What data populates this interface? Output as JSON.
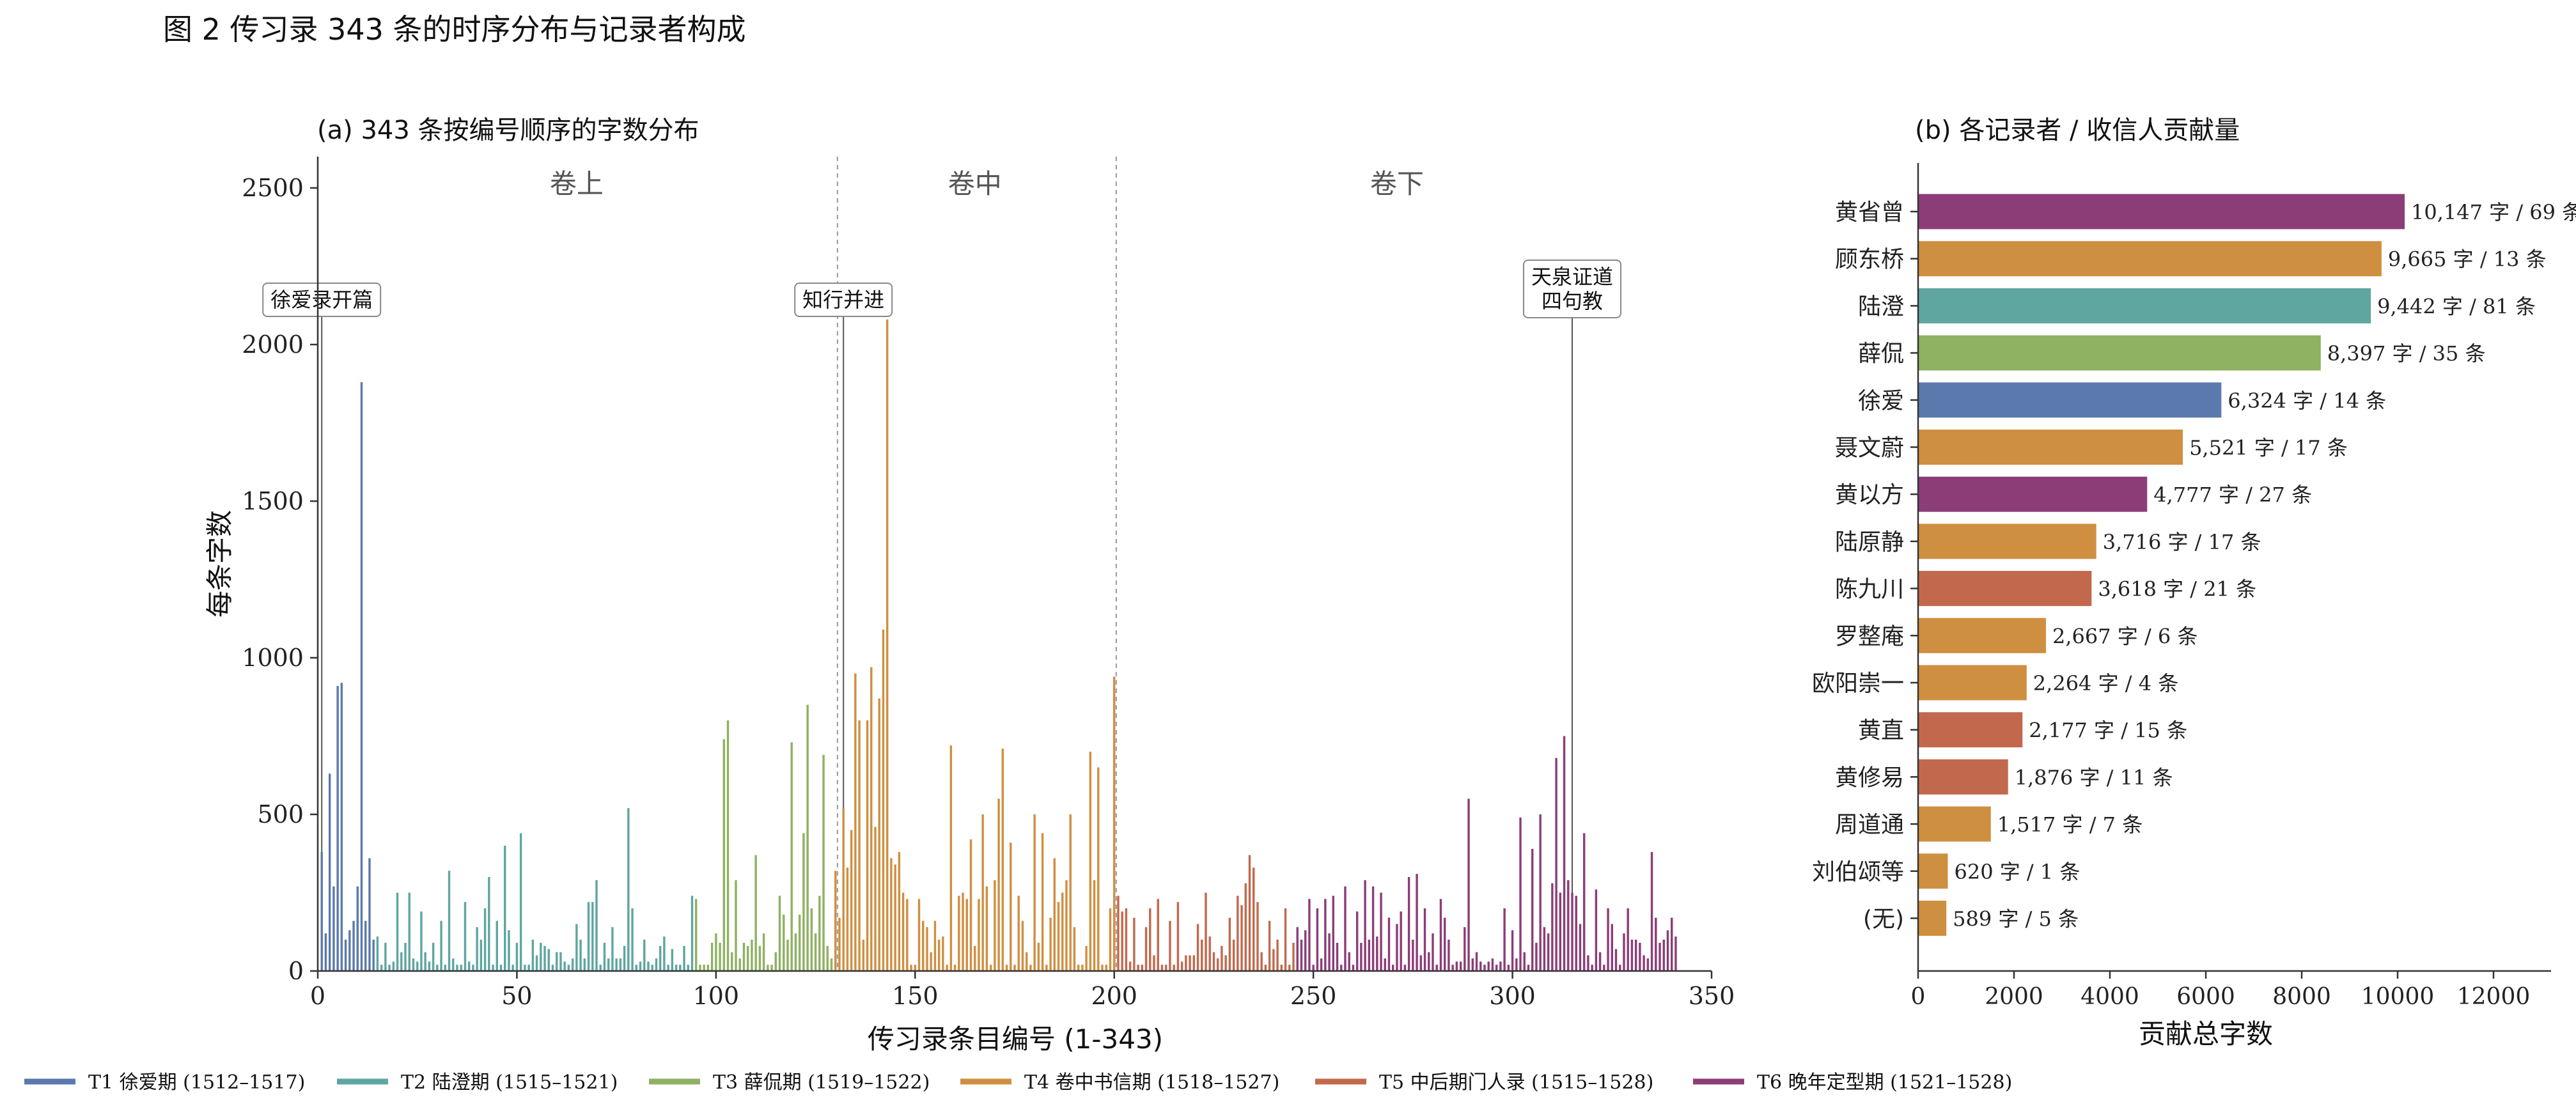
{
  "figure": {
    "title": "图 2  传习录 343 条的时序分布与记录者构成"
  },
  "colors": {
    "T1": "#5b79ad",
    "T2": "#5fa6a0",
    "T3": "#8fb162",
    "T4": "#cf8f41",
    "T5": "#c2694d",
    "T6": "#8c3d78",
    "axis": "#333333",
    "divider": "#999999"
  },
  "legend": [
    {
      "key": "T1",
      "label": "T1 徐爱期 (1512–1517)"
    },
    {
      "key": "T2",
      "label": "T2 陆澄期 (1515–1521)"
    },
    {
      "key": "T3",
      "label": "T3 薛侃期 (1519–1522)"
    },
    {
      "key": "T4",
      "label": "T4 卷中书信期 (1518–1527)"
    },
    {
      "key": "T5",
      "label": "T5 中后期门人录 (1515–1528)"
    },
    {
      "key": "T6",
      "label": "T6 晚年定型期 (1521–1528)"
    }
  ],
  "chart_data": [
    {
      "id": "a",
      "type": "bar",
      "title": "(a)  343 条按编号顺序的字数分布",
      "xlabel": "传习录条目编号 (1-343)",
      "ylabel": "每条字数",
      "xlim": [
        0,
        350
      ],
      "ylim": [
        0,
        2600
      ],
      "xticks": [
        0,
        50,
        100,
        150,
        200,
        250,
        300,
        350
      ],
      "yticks": [
        0,
        500,
        1000,
        1500,
        2000,
        2500
      ],
      "grid": false,
      "volume_dividers": [
        130.5,
        200.5
      ],
      "volume_labels": [
        {
          "label": "卷上",
          "x": 65
        },
        {
          "label": "卷中",
          "x": 165
        },
        {
          "label": "卷下",
          "x": 271
        }
      ],
      "annotations": [
        {
          "lines": [
            "徐爱录开篇"
          ],
          "x": 1
        },
        {
          "lines": [
            "知行并进"
          ],
          "x": 132
        },
        {
          "lines": [
            "天泉证道",
            "四句教"
          ],
          "x": 315
        }
      ],
      "period_segments": [
        {
          "key": "T1",
          "start": 1,
          "end": 14
        },
        {
          "key": "T2",
          "start": 15,
          "end": 94
        },
        {
          "key": "T3",
          "start": 95,
          "end": 129
        },
        {
          "key": "T4",
          "start": 130,
          "end": 200
        },
        {
          "key": "T5",
          "start": 201,
          "end": 245
        },
        {
          "key": "T6",
          "start": 246,
          "end": 343
        }
      ],
      "values": [
        380,
        120,
        630,
        270,
        910,
        920,
        100,
        130,
        160,
        270,
        1880,
        160,
        360,
        100,
        110,
        20,
        90,
        20,
        30,
        250,
        60,
        90,
        250,
        40,
        30,
        190,
        60,
        30,
        90,
        20,
        160,
        20,
        320,
        40,
        20,
        20,
        220,
        30,
        20,
        140,
        100,
        200,
        300,
        20,
        160,
        20,
        400,
        130,
        20,
        90,
        440,
        20,
        20,
        100,
        50,
        90,
        80,
        70,
        20,
        60,
        60,
        30,
        20,
        40,
        150,
        100,
        40,
        220,
        220,
        290,
        20,
        90,
        40,
        140,
        40,
        40,
        80,
        520,
        200,
        20,
        30,
        100,
        30,
        20,
        40,
        80,
        110,
        20,
        70,
        20,
        20,
        80,
        20,
        240,
        230,
        20,
        20,
        20,
        90,
        120,
        90,
        740,
        800,
        60,
        290,
        40,
        90,
        80,
        100,
        370,
        80,
        120,
        20,
        20,
        60,
        240,
        180,
        100,
        730,
        120,
        180,
        440,
        850,
        200,
        120,
        240,
        690,
        80,
        40,
        320,
        170,
        520,
        330,
        450,
        950,
        800,
        100,
        800,
        970,
        460,
        870,
        1090,
        2080,
        360,
        340,
        380,
        250,
        230,
        20,
        20,
        230,
        160,
        140,
        60,
        160,
        100,
        110,
        20,
        720,
        20,
        240,
        250,
        230,
        420,
        80,
        230,
        500,
        270,
        20,
        290,
        550,
        710,
        20,
        410,
        20,
        240,
        160,
        60,
        20,
        500,
        90,
        440,
        20,
        170,
        360,
        220,
        250,
        290,
        500,
        140,
        20,
        20,
        80,
        700,
        290,
        650,
        20,
        20,
        200,
        940,
        240,
        190,
        200,
        30,
        170,
        20,
        20,
        140,
        200,
        50,
        230,
        20,
        20,
        160,
        20,
        220,
        30,
        50,
        50,
        50,
        150,
        100,
        250,
        110,
        60,
        40,
        80,
        50,
        170,
        100,
        240,
        210,
        280,
        370,
        330,
        220,
        60,
        20,
        160,
        70,
        100,
        20,
        200,
        20,
        90,
        140,
        100,
        130,
        230,
        20,
        200,
        40,
        230,
        120,
        240,
        90,
        20,
        270,
        60,
        20,
        190,
        90,
        290,
        100,
        270,
        110,
        250,
        40,
        170,
        20,
        150,
        190,
        20,
        300,
        100,
        310,
        50,
        200,
        60,
        120,
        20,
        230,
        170,
        100,
        20,
        30,
        30,
        140,
        550,
        40,
        60,
        30,
        20,
        30,
        40,
        20,
        30,
        200,
        20,
        130,
        40,
        490,
        60,
        20,
        390,
        90,
        500,
        140,
        120,
        280,
        680,
        250,
        750,
        290,
        250,
        240,
        150,
        440,
        50,
        20,
        260,
        60,
        20,
        200,
        150,
        70,
        20,
        120,
        200,
        100,
        100,
        90,
        50,
        40,
        380,
        170,
        90,
        100,
        130,
        170,
        110
      ]
    },
    {
      "id": "b",
      "type": "bar",
      "orientation": "horizontal",
      "title": "(b)  各记录者 / 收信人贡献量",
      "xlabel": "贡献总字数",
      "ylabel": "",
      "xlim": [
        0,
        13200
      ],
      "xticks": [
        0,
        2000,
        4000,
        6000,
        8000,
        10000,
        12000
      ],
      "grid": false,
      "categories": [
        "黄省曾",
        "顾东桥",
        "陆澄",
        "薛侃",
        "徐爱",
        "聂文蔚",
        "黄以方",
        "陆原静",
        "陈九川",
        "罗整庵",
        "欧阳崇一",
        "黄直",
        "黄修易",
        "周道通",
        "刘伯颂等",
        "(无)"
      ],
      "values": [
        10147,
        9665,
        9442,
        8397,
        6324,
        5521,
        4777,
        3716,
        3618,
        2667,
        2264,
        2177,
        1876,
        1517,
        620,
        589
      ],
      "bar_colors": [
        "T6",
        "T4",
        "T2",
        "T3",
        "T1",
        "T4",
        "T6",
        "T4",
        "T5",
        "T4",
        "T4",
        "T5",
        "T5",
        "T4",
        "T4",
        "T4"
      ],
      "data_labels": [
        "10,147 字 / 69 条",
        "9,665 字 / 13 条",
        "9,442 字 / 81 条",
        "8,397 字 / 35 条",
        "6,324 字 / 14 条",
        "5,521 字 / 17 条",
        "4,777 字 / 27 条",
        "3,716 字 / 17 条",
        "3,618 字 / 21 条",
        "2,667 字 / 6 条",
        "2,264 字 / 4 条",
        "2,177 字 / 15 条",
        "1,876 字 / 11 条",
        "1,517 字 / 7 条",
        "620 字 / 1 条",
        "589 字 / 5 条"
      ]
    }
  ]
}
